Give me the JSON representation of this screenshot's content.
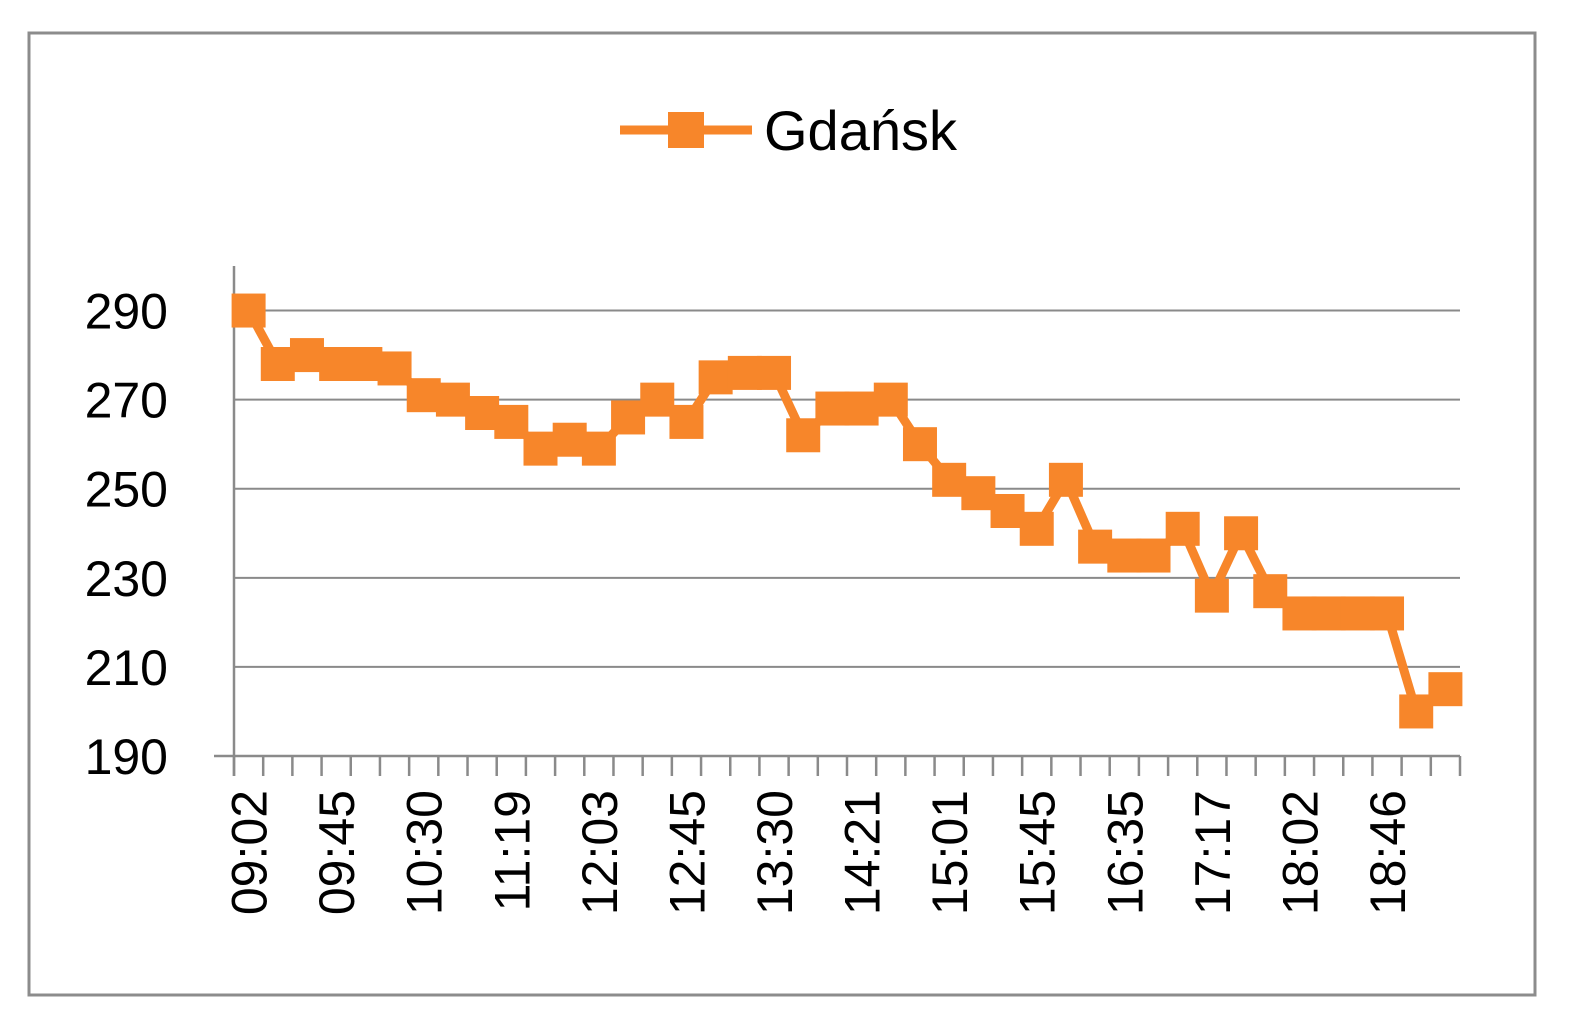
{
  "chart_data": {
    "type": "line",
    "title": "",
    "xlabel": "",
    "ylabel": "",
    "legend_position": "top-center",
    "grid": true,
    "series_color": "#f7862a",
    "ylim": [
      190,
      300
    ],
    "y_ticks": [
      190,
      210,
      230,
      250,
      270,
      290
    ],
    "x_tick_labels": [
      "09:02",
      "09:45",
      "10:30",
      "11:19",
      "12:03",
      "12:45",
      "13:30",
      "14:21",
      "15:01",
      "15:45",
      "16:35",
      "17:17",
      "18:02",
      "18:46"
    ],
    "series": [
      {
        "name": "Gdańsk",
        "marker": "square",
        "values": [
          290,
          278,
          280,
          278,
          278,
          277,
          271,
          270,
          267,
          265,
          259,
          261,
          259,
          266,
          270,
          265,
          275,
          276,
          276,
          262,
          268,
          268,
          270,
          260,
          252,
          249,
          245,
          241,
          252,
          237,
          235,
          235,
          241,
          226,
          240,
          227,
          222,
          222,
          222,
          222,
          200,
          205
        ]
      }
    ]
  }
}
